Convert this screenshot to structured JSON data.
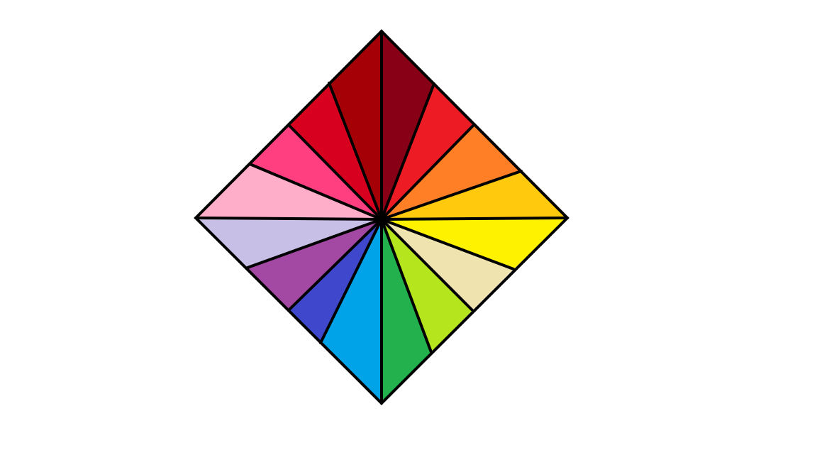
{
  "figure": {
    "shape": "diamond",
    "background": "#ffffff",
    "outline_color": "#000000",
    "segments": [
      {
        "name": "dark-red",
        "color": "#880015"
      },
      {
        "name": "red",
        "color": "#ed1c24"
      },
      {
        "name": "orange",
        "color": "#ff7f27"
      },
      {
        "name": "gold",
        "color": "#ffc90e"
      },
      {
        "name": "yellow",
        "color": "#fff200"
      },
      {
        "name": "cream",
        "color": "#efe4b0"
      },
      {
        "name": "lime",
        "color": "#b5e61d"
      },
      {
        "name": "green",
        "color": "#22b14c"
      },
      {
        "name": "sky-blue",
        "color": "#00a2e8"
      },
      {
        "name": "indigo",
        "color": "#3f48cc"
      },
      {
        "name": "purple",
        "color": "#a349a4"
      },
      {
        "name": "lavender",
        "color": "#c8bfe7"
      },
      {
        "name": "light-pink",
        "color": "#ffaec9"
      },
      {
        "name": "hot-pink",
        "color": "#ff3f7f"
      },
      {
        "name": "crimson",
        "color": "#d7001f"
      },
      {
        "name": "maroon",
        "color": "#a50006"
      }
    ]
  }
}
